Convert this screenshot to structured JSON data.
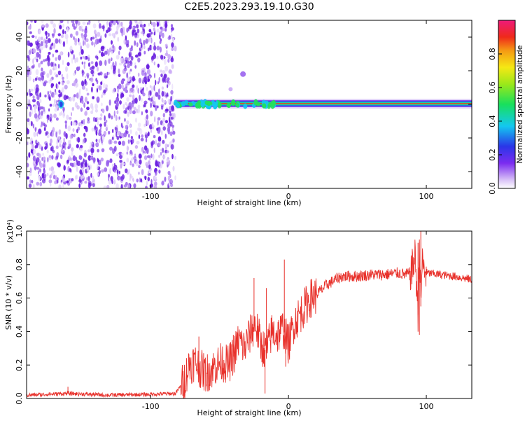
{
  "title": "C2E5.2023.293.19.10.G30",
  "colors": {
    "line": "#e8312b",
    "scatter_purple": "#6a1fe0",
    "trace_core": "#e83a2a",
    "trace_mid": "#22e05a",
    "trace_outer": "#1a3bd8"
  },
  "chart_data": [
    {
      "type": "heatmap",
      "title": "C2E5.2023.293.19.10.G30",
      "xlabel": "Height of straight line (km)",
      "ylabel": "Frequency (Hz)",
      "xlim": [
        -190,
        133
      ],
      "ylim": [
        -50,
        50
      ],
      "x_ticks": [
        -100,
        0,
        100
      ],
      "y_ticks": [
        40,
        20,
        0,
        -20,
        -40
      ],
      "x_tick_labels": [
        "-100",
        "0",
        "100"
      ],
      "y_tick_labels": [
        "40",
        "20",
        "0",
        "-20",
        "-40"
      ],
      "colorbar": {
        "label": "Normalized spectral amplitude",
        "range": [
          0,
          1
        ],
        "ticks": [
          0.0,
          0.2,
          0.4,
          0.6,
          0.8
        ],
        "tick_labels": [
          "0.0",
          "0.2",
          "0.4",
          "0.6",
          "0.8"
        ],
        "colormap": "rainbow (white-purple-blue-cyan-green-yellow-orange-red-magenta)"
      },
      "features": {
        "noise_region_x": [
          -190,
          -82
        ],
        "narrowband_trace_x": [
          -82,
          133
        ],
        "trace_frequency_hz": 0,
        "trace_peak_amplitude": 0.85
      },
      "grid": false
    },
    {
      "type": "line",
      "xlabel": "Height of straight line (km)",
      "ylabel": "SNR (10 * v/v)",
      "y_scale_label": "(x10⁴)",
      "xlim": [
        -190,
        133
      ],
      "ylim": [
        0.0,
        1.0
      ],
      "x_ticks": [
        -100,
        0,
        100
      ],
      "y_ticks": [
        0.0,
        0.2,
        0.4,
        0.6,
        0.8,
        1.0
      ],
      "x_tick_labels": [
        "-100",
        "0",
        "100"
      ],
      "y_tick_labels": [
        "0.0",
        "0.2",
        "0.4",
        "0.6",
        "0.8",
        "1.0"
      ],
      "grid": false,
      "series": [
        {
          "color": "#e8312b",
          "x": [
            -190,
            -160,
            -130,
            -100,
            -82,
            -76,
            -72,
            -68,
            -64,
            -60,
            -56,
            -52,
            -48,
            -44,
            -40,
            -36,
            -32,
            -28,
            -24,
            -20,
            -16,
            -12,
            -8,
            -4,
            0,
            4,
            8,
            12,
            16,
            20,
            24,
            28,
            32,
            36,
            40,
            50,
            60,
            70,
            80,
            85,
            88,
            90,
            92,
            94,
            95,
            96,
            97,
            98,
            100,
            110,
            120,
            133
          ],
          "y": [
            0.02,
            0.03,
            0.02,
            0.025,
            0.03,
            0.1,
            0.2,
            0.22,
            0.18,
            0.15,
            0.17,
            0.2,
            0.22,
            0.2,
            0.25,
            0.35,
            0.3,
            0.38,
            0.45,
            0.32,
            0.28,
            0.4,
            0.38,
            0.42,
            0.32,
            0.45,
            0.5,
            0.55,
            0.6,
            0.62,
            0.65,
            0.68,
            0.7,
            0.72,
            0.73,
            0.73,
            0.74,
            0.74,
            0.75,
            0.74,
            0.75,
            0.78,
            0.85,
            0.5,
            0.95,
            0.55,
            0.82,
            0.77,
            0.75,
            0.74,
            0.73,
            0.71
          ],
          "spikes": [
            {
              "x": -160,
              "y": 0.07
            },
            {
              "x": -65,
              "y": 0.37
            },
            {
              "x": -40,
              "y": 0.38
            },
            {
              "x": -25,
              "y": 0.72
            },
            {
              "x": -16,
              "y": 0.66
            },
            {
              "x": -17,
              "y": 0.03
            },
            {
              "x": -3,
              "y": 0.83
            },
            {
              "x": -2,
              "y": 0.19
            },
            {
              "x": 94,
              "y": 0.93
            },
            {
              "x": 95,
              "y": 0.38
            },
            {
              "x": 96,
              "y": 1.0
            }
          ]
        }
      ]
    }
  ]
}
